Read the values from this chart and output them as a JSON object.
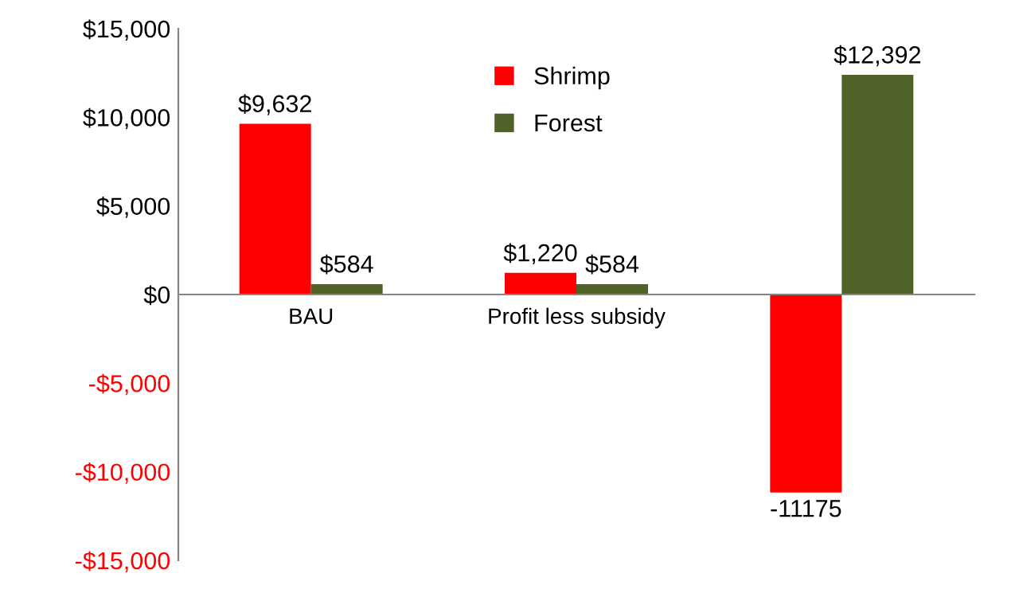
{
  "chart_data": {
    "type": "bar",
    "categories": [
      "BAU",
      "Profit less subsidy",
      null
    ],
    "series": [
      {
        "name": "Shrimp",
        "color": "#ff0000",
        "values": [
          9632,
          1220,
          -11175
        ],
        "value_labels": [
          "$9,632",
          "$1,220",
          "-11175"
        ]
      },
      {
        "name": "Forest",
        "color": "#4f6228",
        "values": [
          584,
          584,
          12392
        ],
        "value_labels": [
          "$584",
          "$584",
          "$12,392"
        ]
      }
    ],
    "ylim": [
      -15000,
      15000
    ],
    "yticks": [
      {
        "value": -15000,
        "label": "-$15,000"
      },
      {
        "value": -10000,
        "label": "-$10,000"
      },
      {
        "value": -5000,
        "label": "-$5,000"
      },
      {
        "value": 0,
        "label": "$0"
      },
      {
        "value": 5000,
        "label": "$5,000"
      },
      {
        "value": 10000,
        "label": "$10,000"
      },
      {
        "value": 15000,
        "label": "$15,000"
      }
    ],
    "grid": false,
    "legend": "top"
  }
}
